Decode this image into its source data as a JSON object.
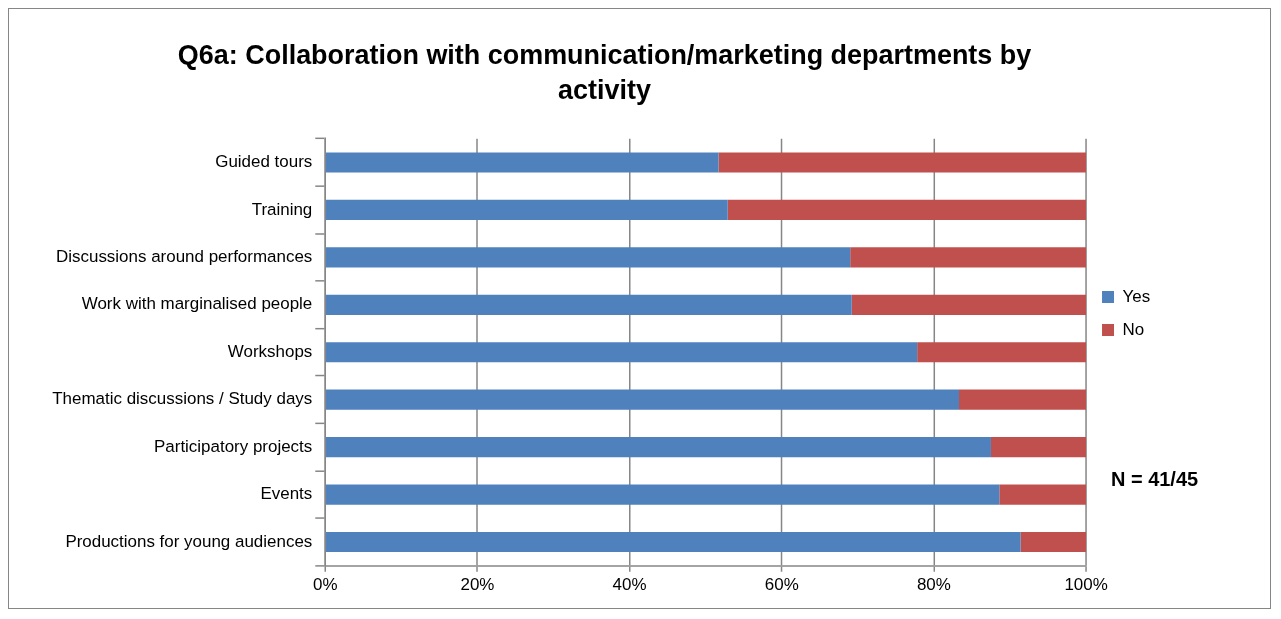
{
  "chart_data": {
    "type": "bar",
    "orientation": "horizontal",
    "stacked": true,
    "title": "Q6a: Collaboration with communication/marketing departments by activity",
    "categories": [
      "Guided tours",
      "Training",
      "Discussions around performances",
      "Work with marginalised people",
      "Workshops",
      "Thematic discussions / Study days",
      "Participatory projects",
      "Events",
      "Productions for young audiences"
    ],
    "series": [
      {
        "name": "Yes",
        "color": "#4f81bd",
        "values": [
          51.7,
          52.9,
          69.0,
          69.2,
          77.8,
          83.3,
          87.5,
          88.6,
          91.4
        ]
      },
      {
        "name": "No",
        "color": "#c0504d",
        "values": [
          48.3,
          47.1,
          31.0,
          30.8,
          22.2,
          16.7,
          12.5,
          11.4,
          8.6
        ]
      }
    ],
    "xlim": [
      0,
      100
    ],
    "xticks": [
      {
        "value": 0,
        "label": "0%"
      },
      {
        "value": 20,
        "label": "20%"
      },
      {
        "value": 40,
        "label": "40%"
      },
      {
        "value": 60,
        "label": "60%"
      },
      {
        "value": 80,
        "label": "80%"
      },
      {
        "value": 100,
        "label": "100%"
      }
    ],
    "grid": "x",
    "legend": "right",
    "annotations": [
      "N = 41/45"
    ]
  }
}
